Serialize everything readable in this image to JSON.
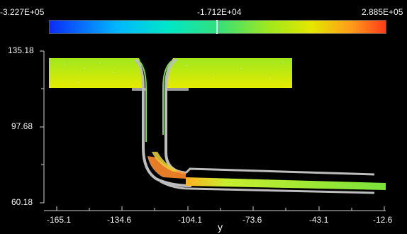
{
  "colorbar": {
    "min_label": "-3.227E+05",
    "mid_label": "-1.712E+04",
    "max_label": "2.885E+05",
    "colors": [
      "#0a2cf5",
      "#00b7ff",
      "#00e6c8",
      "#33e07a",
      "#9fe81e",
      "#e6e600",
      "#ff9a1a",
      "#ff3b1a"
    ]
  },
  "axes": {
    "x_label": "y",
    "x_ticks": [
      "-165.1",
      "-134.6",
      "-104.1",
      "-73.6",
      "-43.1",
      "-12.6"
    ],
    "y_ticks": [
      "135.18",
      "97.68",
      "60.18"
    ]
  },
  "colors": {
    "background": "#000000",
    "field_main": "#c6ec18",
    "field_hot": "#ff8a2a",
    "wall": "#bdbdbd"
  }
}
